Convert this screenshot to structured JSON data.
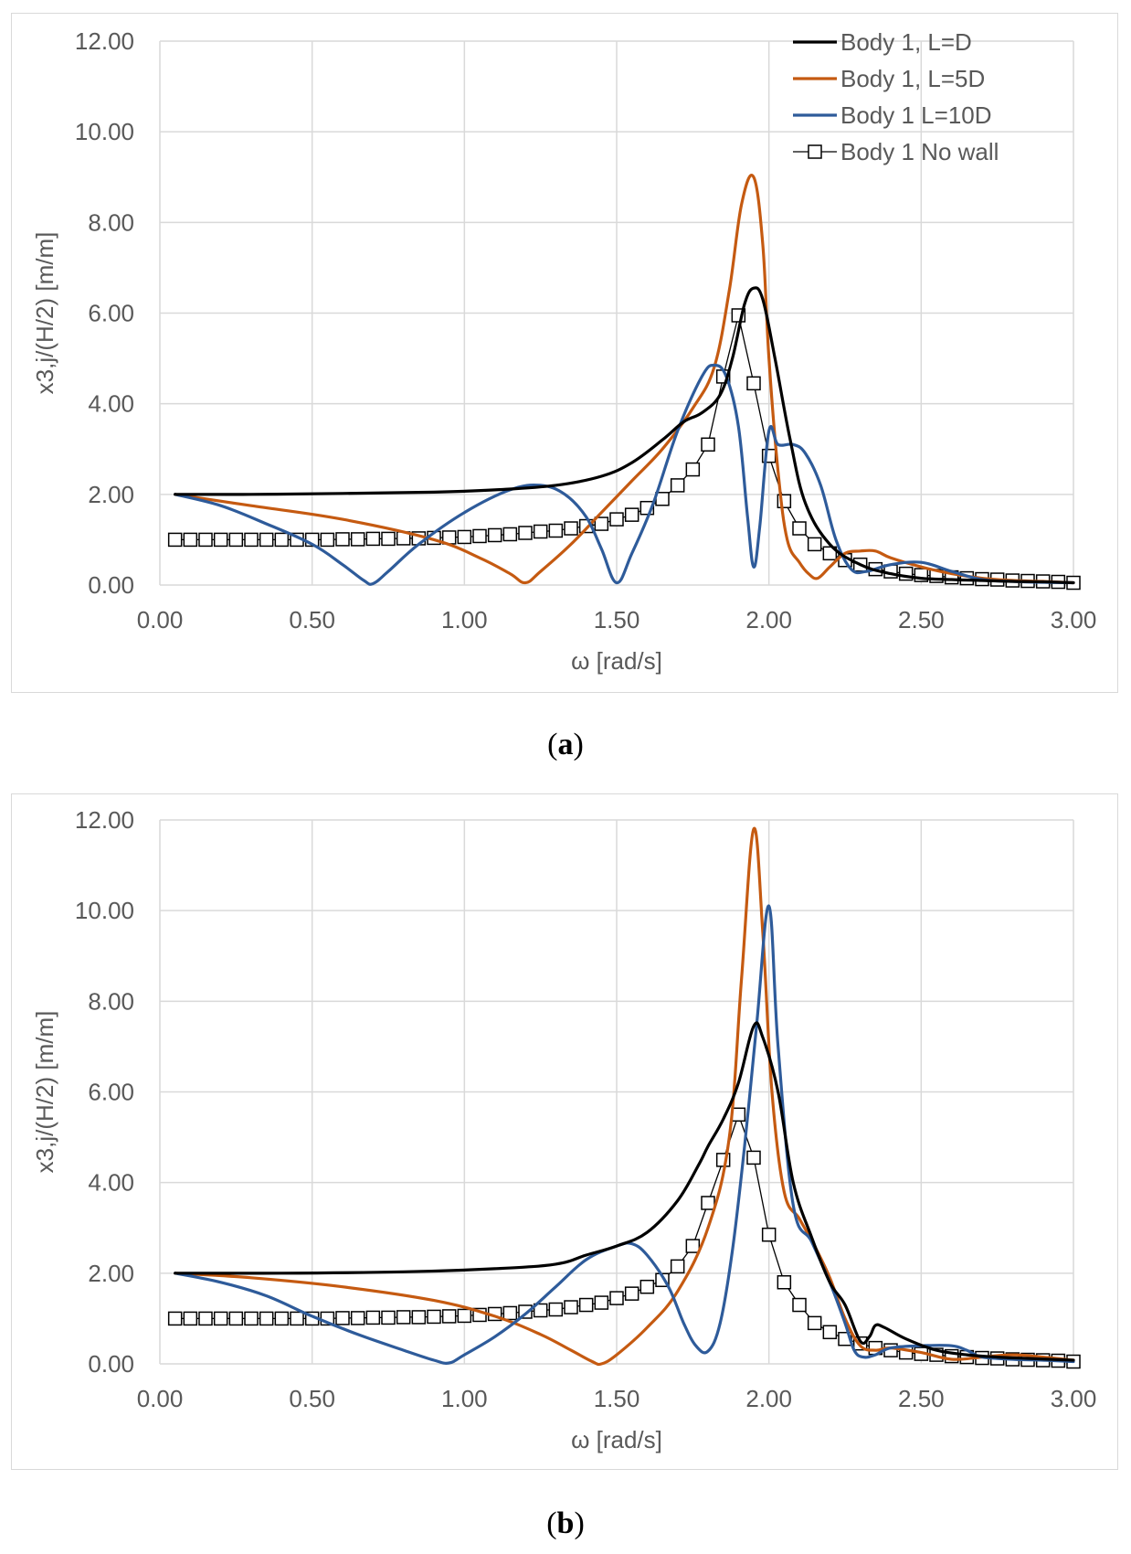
{
  "chart_data": [
    {
      "type": "line",
      "panel": "(a)",
      "panel_letter": "a",
      "title": "",
      "xlabel": "ω  [rad/s]",
      "ylabel": "x3,j/(H/2)  [m/m]",
      "xlim": [
        0,
        3
      ],
      "ylim": [
        0,
        12
      ],
      "xticks": [
        "0.00",
        "0.50",
        "1.00",
        "1.50",
        "2.00",
        "2.50",
        "3.00"
      ],
      "yticks": [
        "0.00",
        "2.00",
        "4.00",
        "6.00",
        "8.00",
        "10.00",
        "12.00"
      ],
      "grid": true,
      "legend_position": "top-right",
      "series": [
        {
          "name": "Body 1, L=D",
          "color": "#000000",
          "marker": "none",
          "x": [
            0.05,
            0.3,
            0.6,
            0.9,
            1.1,
            1.3,
            1.45,
            1.55,
            1.65,
            1.72,
            1.78,
            1.84,
            1.88,
            1.92,
            1.95,
            1.98,
            2.02,
            2.07,
            2.12,
            2.2,
            2.3,
            2.4,
            2.5,
            2.6,
            2.7,
            2.8,
            2.9,
            3.0
          ],
          "y": [
            2.0,
            2.0,
            2.02,
            2.05,
            2.1,
            2.2,
            2.4,
            2.7,
            3.2,
            3.6,
            3.8,
            4.2,
            5.0,
            6.2,
            6.55,
            6.3,
            5.0,
            3.2,
            1.8,
            0.9,
            0.45,
            0.25,
            0.15,
            0.12,
            0.1,
            0.08,
            0.07,
            0.05
          ]
        },
        {
          "name": "Body 1, L=5D",
          "color": "#c55a11",
          "marker": "none",
          "x": [
            0.05,
            0.3,
            0.6,
            0.9,
            1.05,
            1.15,
            1.2,
            1.25,
            1.35,
            1.45,
            1.55,
            1.65,
            1.75,
            1.82,
            1.87,
            1.91,
            1.95,
            1.98,
            2.0,
            2.03,
            2.06,
            2.1,
            2.13,
            2.16,
            2.2,
            2.25,
            2.3,
            2.35,
            2.4,
            2.5,
            2.6,
            2.7,
            2.8,
            2.9,
            3.0
          ],
          "y": [
            2.0,
            1.75,
            1.45,
            1.0,
            0.6,
            0.25,
            0.05,
            0.3,
            0.9,
            1.6,
            2.3,
            3.0,
            3.9,
            4.8,
            6.5,
            8.4,
            9.0,
            7.5,
            5.0,
            2.5,
            1.0,
            0.5,
            0.25,
            0.15,
            0.4,
            0.7,
            0.75,
            0.75,
            0.6,
            0.4,
            0.25,
            0.15,
            0.1,
            0.08,
            0.05
          ]
        },
        {
          "name": "Body 1 L=10D",
          "color": "#2e5b9a",
          "marker": "none",
          "x": [
            0.05,
            0.2,
            0.35,
            0.5,
            0.6,
            0.67,
            0.7,
            0.75,
            0.85,
            1.0,
            1.15,
            1.25,
            1.33,
            1.4,
            1.45,
            1.5,
            1.55,
            1.62,
            1.7,
            1.78,
            1.82,
            1.86,
            1.9,
            1.93,
            1.95,
            1.97,
            2.0,
            2.03,
            2.08,
            2.12,
            2.17,
            2.22,
            2.27,
            2.32,
            2.4,
            2.5,
            2.6,
            2.7,
            2.8,
            2.9,
            3.0
          ],
          "y": [
            2.0,
            1.75,
            1.35,
            0.9,
            0.45,
            0.1,
            0.03,
            0.3,
            0.9,
            1.6,
            2.1,
            2.2,
            2.0,
            1.5,
            0.8,
            0.05,
            0.7,
            1.8,
            3.4,
            4.6,
            4.85,
            4.6,
            3.5,
            1.5,
            0.4,
            1.3,
            3.4,
            3.1,
            3.1,
            2.9,
            2.2,
            1.0,
            0.35,
            0.3,
            0.45,
            0.5,
            0.3,
            0.12,
            0.08,
            0.06,
            0.05
          ]
        },
        {
          "name": "Body 1 No wall",
          "color": "#000000",
          "marker": "square",
          "x": [
            0.05,
            0.1,
            0.15,
            0.2,
            0.25,
            0.3,
            0.35,
            0.4,
            0.45,
            0.5,
            0.55,
            0.6,
            0.65,
            0.7,
            0.75,
            0.8,
            0.85,
            0.9,
            0.95,
            1.0,
            1.05,
            1.1,
            1.15,
            1.2,
            1.25,
            1.3,
            1.35,
            1.4,
            1.45,
            1.5,
            1.55,
            1.6,
            1.65,
            1.7,
            1.75,
            1.8,
            1.85,
            1.9,
            1.95,
            2.0,
            2.05,
            2.1,
            2.15,
            2.2,
            2.25,
            2.3,
            2.35,
            2.4,
            2.45,
            2.5,
            2.55,
            2.6,
            2.65,
            2.7,
            2.75,
            2.8,
            2.85,
            2.9,
            2.95,
            3.0
          ],
          "y": [
            1.0,
            1.0,
            1.0,
            1.0,
            1.0,
            1.0,
            1.0,
            1.0,
            1.0,
            1.0,
            1.0,
            1.01,
            1.01,
            1.02,
            1.02,
            1.03,
            1.03,
            1.04,
            1.05,
            1.06,
            1.08,
            1.1,
            1.12,
            1.15,
            1.18,
            1.2,
            1.25,
            1.3,
            1.35,
            1.45,
            1.55,
            1.7,
            1.9,
            2.2,
            2.55,
            3.1,
            4.6,
            5.95,
            4.45,
            2.85,
            1.85,
            1.25,
            0.9,
            0.7,
            0.55,
            0.45,
            0.35,
            0.3,
            0.25,
            0.22,
            0.2,
            0.17,
            0.15,
            0.13,
            0.12,
            0.1,
            0.09,
            0.08,
            0.07,
            0.05
          ]
        }
      ]
    },
    {
      "type": "line",
      "panel": "(b)",
      "panel_letter": "b",
      "title": "",
      "xlabel": "ω  [rad/s]",
      "ylabel": "x3,j/(H/2)  [m/m]",
      "xlim": [
        0,
        3
      ],
      "ylim": [
        0,
        12
      ],
      "xticks": [
        "0.00",
        "0.50",
        "1.00",
        "1.50",
        "2.00",
        "2.50",
        "3.00"
      ],
      "yticks": [
        "0.00",
        "2.00",
        "4.00",
        "6.00",
        "8.00",
        "10.00",
        "12.00"
      ],
      "grid": true,
      "series": [
        {
          "name": "Body 1, L=D",
          "color": "#000000",
          "marker": "none",
          "x": [
            0.05,
            0.4,
            0.8,
            1.1,
            1.3,
            1.4,
            1.5,
            1.6,
            1.7,
            1.77,
            1.8,
            1.85,
            1.9,
            1.95,
            1.98,
            2.03,
            2.08,
            2.14,
            2.2,
            2.25,
            2.3,
            2.33,
            2.35,
            2.38,
            2.45,
            2.55,
            2.65,
            2.75,
            2.85,
            3.0
          ],
          "y": [
            2.0,
            2.0,
            2.03,
            2.1,
            2.2,
            2.4,
            2.6,
            2.9,
            3.6,
            4.4,
            4.8,
            5.4,
            6.2,
            7.45,
            7.2,
            6.0,
            4.0,
            2.8,
            1.8,
            1.3,
            0.5,
            0.6,
            0.85,
            0.8,
            0.55,
            0.3,
            0.2,
            0.15,
            0.12,
            0.08
          ]
        },
        {
          "name": "Body 1, L=5D",
          "color": "#c55a11",
          "marker": "none",
          "x": [
            0.05,
            0.3,
            0.6,
            0.9,
            1.1,
            1.25,
            1.35,
            1.42,
            1.45,
            1.5,
            1.6,
            1.7,
            1.8,
            1.87,
            1.91,
            1.95,
            1.98,
            2.01,
            2.05,
            2.1,
            2.15,
            2.2,
            2.25,
            2.3,
            2.35,
            2.4,
            2.5,
            2.6,
            2.7,
            2.8,
            2.9,
            3.0
          ],
          "y": [
            2.0,
            1.9,
            1.7,
            1.4,
            1.05,
            0.65,
            0.3,
            0.05,
            0.0,
            0.2,
            0.8,
            1.6,
            3.0,
            5.0,
            8.5,
            11.8,
            9.5,
            6.0,
            3.8,
            3.2,
            2.6,
            1.9,
            1.0,
            0.4,
            0.3,
            0.35,
            0.25,
            0.1,
            0.15,
            0.2,
            0.15,
            0.08
          ]
        },
        {
          "name": "Body 1 L=10D",
          "color": "#2e5b9a",
          "marker": "none",
          "x": [
            0.05,
            0.2,
            0.35,
            0.5,
            0.65,
            0.8,
            0.9,
            0.95,
            1.0,
            1.1,
            1.2,
            1.3,
            1.4,
            1.5,
            1.55,
            1.6,
            1.67,
            1.72,
            1.76,
            1.8,
            1.84,
            1.88,
            1.92,
            1.96,
            2.0,
            2.03,
            2.08,
            2.14,
            2.2,
            2.25,
            2.28,
            2.31,
            2.35,
            2.4,
            2.5,
            2.6,
            2.65,
            2.7,
            2.8,
            2.9,
            3.0
          ],
          "y": [
            2.0,
            1.8,
            1.5,
            1.05,
            0.65,
            0.3,
            0.08,
            0.02,
            0.2,
            0.6,
            1.1,
            1.7,
            2.3,
            2.6,
            2.65,
            2.4,
            1.7,
            0.9,
            0.4,
            0.28,
            0.9,
            2.5,
            4.8,
            7.5,
            10.1,
            7.0,
            3.5,
            2.7,
            1.8,
            0.9,
            0.3,
            0.15,
            0.2,
            0.35,
            0.4,
            0.4,
            0.3,
            0.15,
            0.1,
            0.08,
            0.05
          ]
        },
        {
          "name": "Body 1 No wall",
          "color": "#000000",
          "marker": "square",
          "x": [
            0.05,
            0.1,
            0.15,
            0.2,
            0.25,
            0.3,
            0.35,
            0.4,
            0.45,
            0.5,
            0.55,
            0.6,
            0.65,
            0.7,
            0.75,
            0.8,
            0.85,
            0.9,
            0.95,
            1.0,
            1.05,
            1.1,
            1.15,
            1.2,
            1.25,
            1.3,
            1.35,
            1.4,
            1.45,
            1.5,
            1.55,
            1.6,
            1.65,
            1.7,
            1.75,
            1.8,
            1.85,
            1.9,
            1.95,
            2.0,
            2.05,
            2.1,
            2.15,
            2.2,
            2.25,
            2.3,
            2.35,
            2.4,
            2.45,
            2.5,
            2.55,
            2.6,
            2.65,
            2.7,
            2.75,
            2.8,
            2.85,
            2.9,
            2.95,
            3.0
          ],
          "y": [
            1.0,
            1.0,
            1.0,
            1.0,
            1.0,
            1.0,
            1.0,
            1.0,
            1.0,
            1.0,
            1.0,
            1.01,
            1.01,
            1.02,
            1.02,
            1.03,
            1.03,
            1.04,
            1.05,
            1.06,
            1.08,
            1.1,
            1.12,
            1.15,
            1.18,
            1.2,
            1.25,
            1.3,
            1.35,
            1.45,
            1.55,
            1.7,
            1.85,
            2.15,
            2.6,
            3.55,
            4.5,
            5.5,
            4.55,
            2.85,
            1.8,
            1.3,
            0.9,
            0.7,
            0.55,
            0.45,
            0.35,
            0.3,
            0.25,
            0.22,
            0.2,
            0.17,
            0.15,
            0.13,
            0.12,
            0.1,
            0.09,
            0.08,
            0.07,
            0.05
          ]
        }
      ]
    }
  ]
}
